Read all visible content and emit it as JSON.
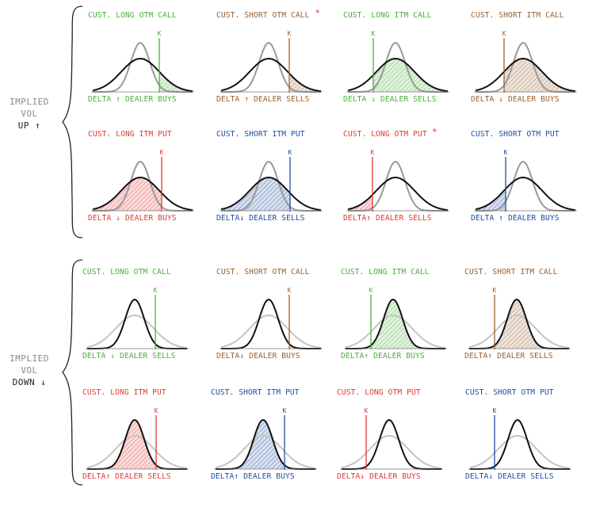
{
  "colors": {
    "green": "#4caf3e",
    "brown": "#9a6232",
    "red": "#e03a2f",
    "blue": "#1f4fa0",
    "black": "#111111",
    "gray": "#999999",
    "light_gray": "#c4c4c4",
    "muted_text": "#8a8a8a"
  },
  "sections": [
    {
      "label": [
        "IMPLIED",
        "VOL"
      ],
      "direction": "UP ↑",
      "rows": [
        [
          {
            "title": "CUST. LONG OTM CALL",
            "color": "green",
            "strike": "right",
            "shade": "right",
            "footer_a": "DELTA ↑",
            "footer_b": "DEALER BUYS",
            "k_label": "K",
            "asterisk": false
          },
          {
            "title": "CUST. SHORT OTM CALL",
            "color": "brown",
            "strike": "right",
            "shade": "right",
            "footer_a": "DELTA ↑",
            "footer_b": "DEALER SELLS",
            "k_label": "K",
            "asterisk": true
          },
          {
            "title": "CUST. LONG ITM CALL",
            "color": "green",
            "strike": "left",
            "shade": "right",
            "footer_a": "DELTA ↓",
            "footer_b": "DEALER SELLS",
            "k_label": "K",
            "asterisk": false
          },
          {
            "title": "CUST. SHORT ITM CALL",
            "color": "brown",
            "strike": "left",
            "shade": "right",
            "footer_a": "DELTA ↓",
            "footer_b": "DEALER BUYS",
            "k_label": "K",
            "asterisk": false
          }
        ],
        [
          {
            "title": "CUST. LONG ITM PUT",
            "color": "red",
            "strike": "right",
            "shade": "left",
            "footer_a": "DELTA ↓",
            "footer_b": "DEALER BUYS",
            "k_label": "K",
            "asterisk": false
          },
          {
            "title": "CUST. SHORT ITM PUT",
            "color": "blue",
            "strike": "right",
            "shade": "left",
            "footer_a": "DELTA↓",
            "footer_b": "DEALER SELLS",
            "k_label": "K",
            "asterisk": false
          },
          {
            "title": "CUST. LONG OTM PUT",
            "color": "red",
            "strike": "left",
            "shade": "left",
            "footer_a": "DELTA↑",
            "footer_b": "DEALER SELLS",
            "k_label": "K",
            "asterisk": true
          },
          {
            "title": "CUST. SHORT OTM PUT",
            "color": "blue",
            "strike": "left",
            "shade": "left",
            "footer_a": "DELTA ↑",
            "footer_b": "DEALER BUYS",
            "k_label": "K",
            "asterisk": false
          }
        ]
      ]
    },
    {
      "label": [
        "IMPLIED",
        "VOL"
      ],
      "direction": "DOWN ↓",
      "rows": [
        [
          {
            "title": "CUST. LONG OTM CALL",
            "color": "green",
            "strike": "right",
            "shade": "right",
            "footer_a": "DELTA ↓",
            "footer_b": "DEALER SELLS",
            "k_label": "K",
            "asterisk": false
          },
          {
            "title": "CUST. SHORT OTM CALL",
            "color": "brown",
            "strike": "right",
            "shade": "right",
            "footer_a": "DELTA↓",
            "footer_b": "DEALER BUYS",
            "k_label": "K",
            "asterisk": false
          },
          {
            "title": "CUST. LONG ITM CALL",
            "color": "green",
            "strike": "left",
            "shade": "right",
            "footer_a": "DELTA↑",
            "footer_b": "DEALER BUYS",
            "k_label": "K",
            "asterisk": false
          },
          {
            "title": "CUST. SHORT ITM CALL",
            "color": "brown",
            "strike": "left",
            "shade": "right",
            "footer_a": "DELTA↑",
            "footer_b": "DEALER SELLS",
            "k_label": "K",
            "asterisk": false
          }
        ],
        [
          {
            "title": "CUST. LONG ITM PUT",
            "color": "red",
            "strike": "right",
            "shade": "left",
            "footer_a": "DELTA↑",
            "footer_b": "DEALER SELLS",
            "k_label": "K",
            "asterisk": false
          },
          {
            "title": "CUST. SHORT ITM PUT",
            "color": "blue",
            "strike": "right",
            "shade": "left",
            "footer_a": "DELTA↑",
            "footer_b": "DEALER BUYS",
            "k_label": "K",
            "asterisk": false
          },
          {
            "title": "CUST. LONG OTM PUT",
            "color": "red",
            "strike": "left",
            "shade": "left",
            "footer_a": "DELTA↓",
            "footer_b": "DEALER BUYS",
            "k_label": "K",
            "asterisk": false
          },
          {
            "title": "CUST. SHORT OTM PUT",
            "color": "blue",
            "strike": "left",
            "shade": "left",
            "footer_a": "DELTA↓",
            "footer_b": "DEALER SELLS",
            "k_label": "K",
            "asterisk": false
          }
        ]
      ]
    }
  ]
}
